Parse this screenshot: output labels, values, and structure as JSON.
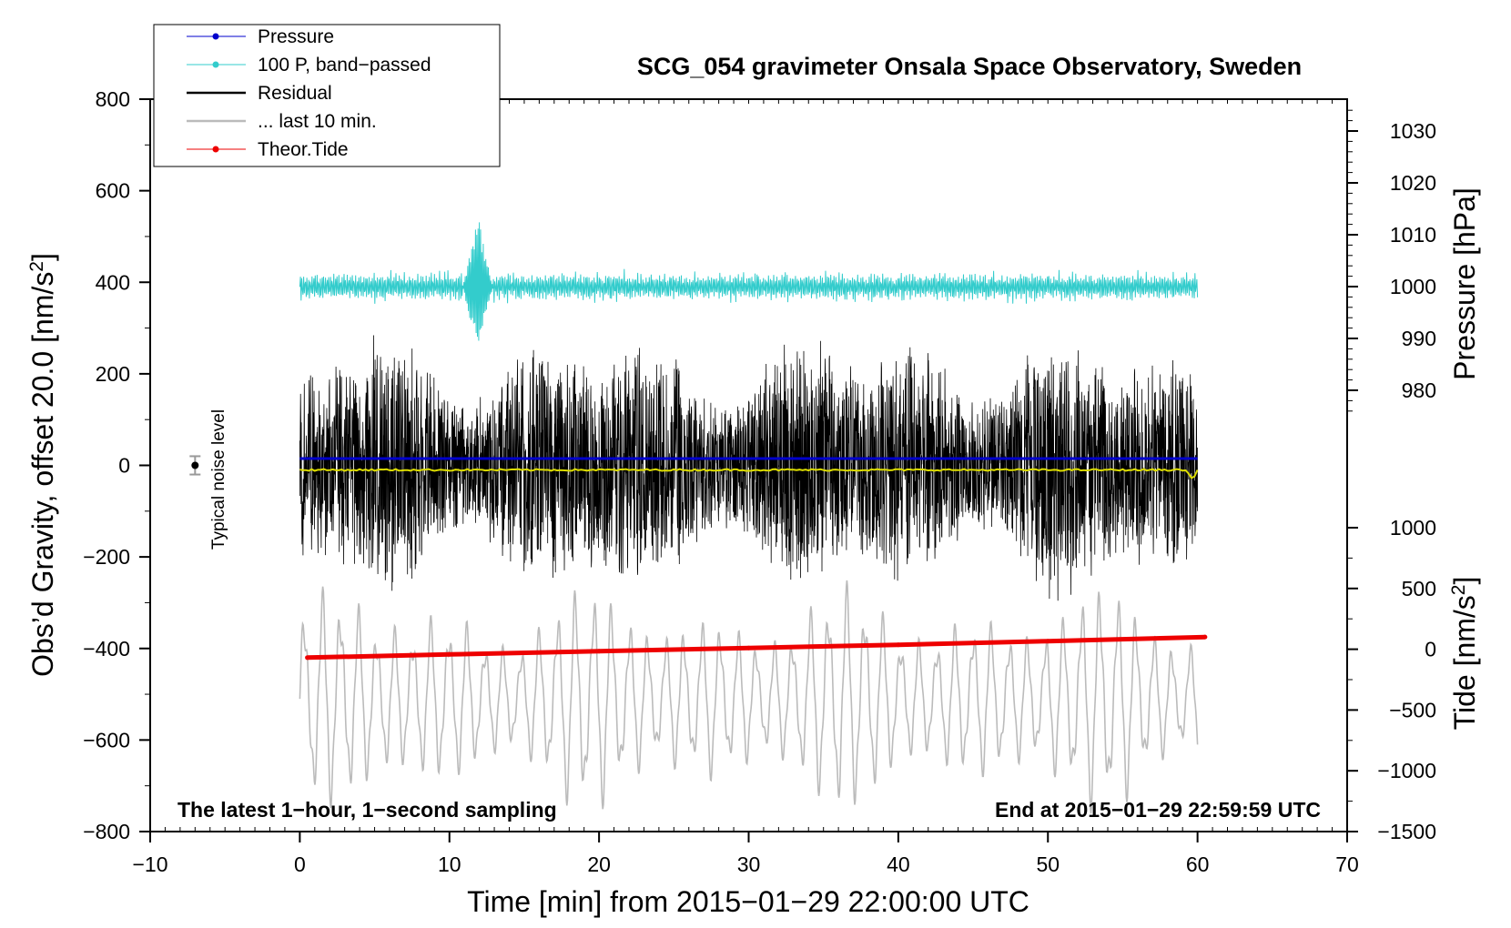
{
  "chart_data": {
    "type": "line",
    "title": "SCG_054 gravimeter Onsala Space Observatory, Sweden",
    "xlabel": "Time [min] from 2015−01−29 22:00:00 UTC",
    "ylabel_left": "Obs’d Gravity, offset 20.0 [nm/s",
    "ylabel_left_sup": "2",
    "ylabel_left_end": "]",
    "ylabel_pressure": "Pressure [hPa]",
    "ylabel_tide": "Tide [nm/s",
    "ylabel_tide_sup": "2",
    "ylabel_tide_end": "]",
    "xlim": [
      -10,
      70
    ],
    "ylim": [
      -800,
      800
    ],
    "x_ticks": [
      "−10",
      "0",
      "10",
      "20",
      "30",
      "40",
      "50",
      "60",
      "70"
    ],
    "y_ticks": [
      "800",
      "600",
      "400",
      "200",
      "0",
      "−200",
      "−400",
      "−600",
      "−800"
    ],
    "pressure_ticks": [
      "1030",
      "1020",
      "1010",
      "1000",
      "990",
      "980"
    ],
    "tide_ticks": [
      "1000",
      "500",
      "0",
      "−500",
      "−1000",
      "−1500"
    ],
    "pressure_range_hPa": [
      975,
      1035
    ],
    "tide_range": [
      -1500,
      1000
    ],
    "legend": [
      {
        "label": "Pressure",
        "color": "#0000cc",
        "marker": true
      },
      {
        "label": "100 P, band−passed",
        "color": "#33cccc",
        "marker": true
      },
      {
        "label": "Residual",
        "color": "#000000",
        "marker": false
      },
      {
        "label": "... last 10 min.",
        "color": "#bbbbbb",
        "marker": false
      },
      {
        "label": "Theor.Tide",
        "color": "#ee0000",
        "marker": true
      }
    ],
    "series": [
      {
        "name": "Pressure",
        "color": "#0000cc",
        "x_range": [
          0,
          60
        ],
        "level_y": 15
      },
      {
        "name": "100 P, band-passed",
        "color": "#33cccc",
        "x_range": [
          0,
          60
        ],
        "center_y": 390,
        "amplitude": 40,
        "peak_at_min": 11.9,
        "peak_max": 550,
        "peak_min": 235
      },
      {
        "name": "Residual",
        "color": "#000000",
        "x_range": [
          0,
          60
        ],
        "center_y": 0,
        "amplitude_range": [
          150,
          330
        ]
      },
      {
        "name": "... last 10 min.",
        "color": "#bbbbbb",
        "x_range": [
          0,
          60
        ],
        "center_y": -510,
        "amplitude_range": [
          100,
          260
        ]
      },
      {
        "name": "Baseline",
        "color": "#dddd00",
        "x_range": [
          0,
          60
        ],
        "level_y": -10
      },
      {
        "name": "Theor.Tide",
        "color": "#ee0000",
        "x": [
          0.5,
          10,
          20,
          30,
          40,
          50,
          60.5
        ],
        "y": [
          -420,
          -413,
          -406,
          -399,
          -392,
          -384,
          -375
        ]
      }
    ],
    "noise_level": {
      "label": "Typical noise level",
      "x": -7,
      "y": 0,
      "error": 20
    },
    "annotation_left": "The latest 1−hour, 1−second sampling",
    "annotation_right": "End at 2015−01−29 22:59:59 UTC"
  }
}
